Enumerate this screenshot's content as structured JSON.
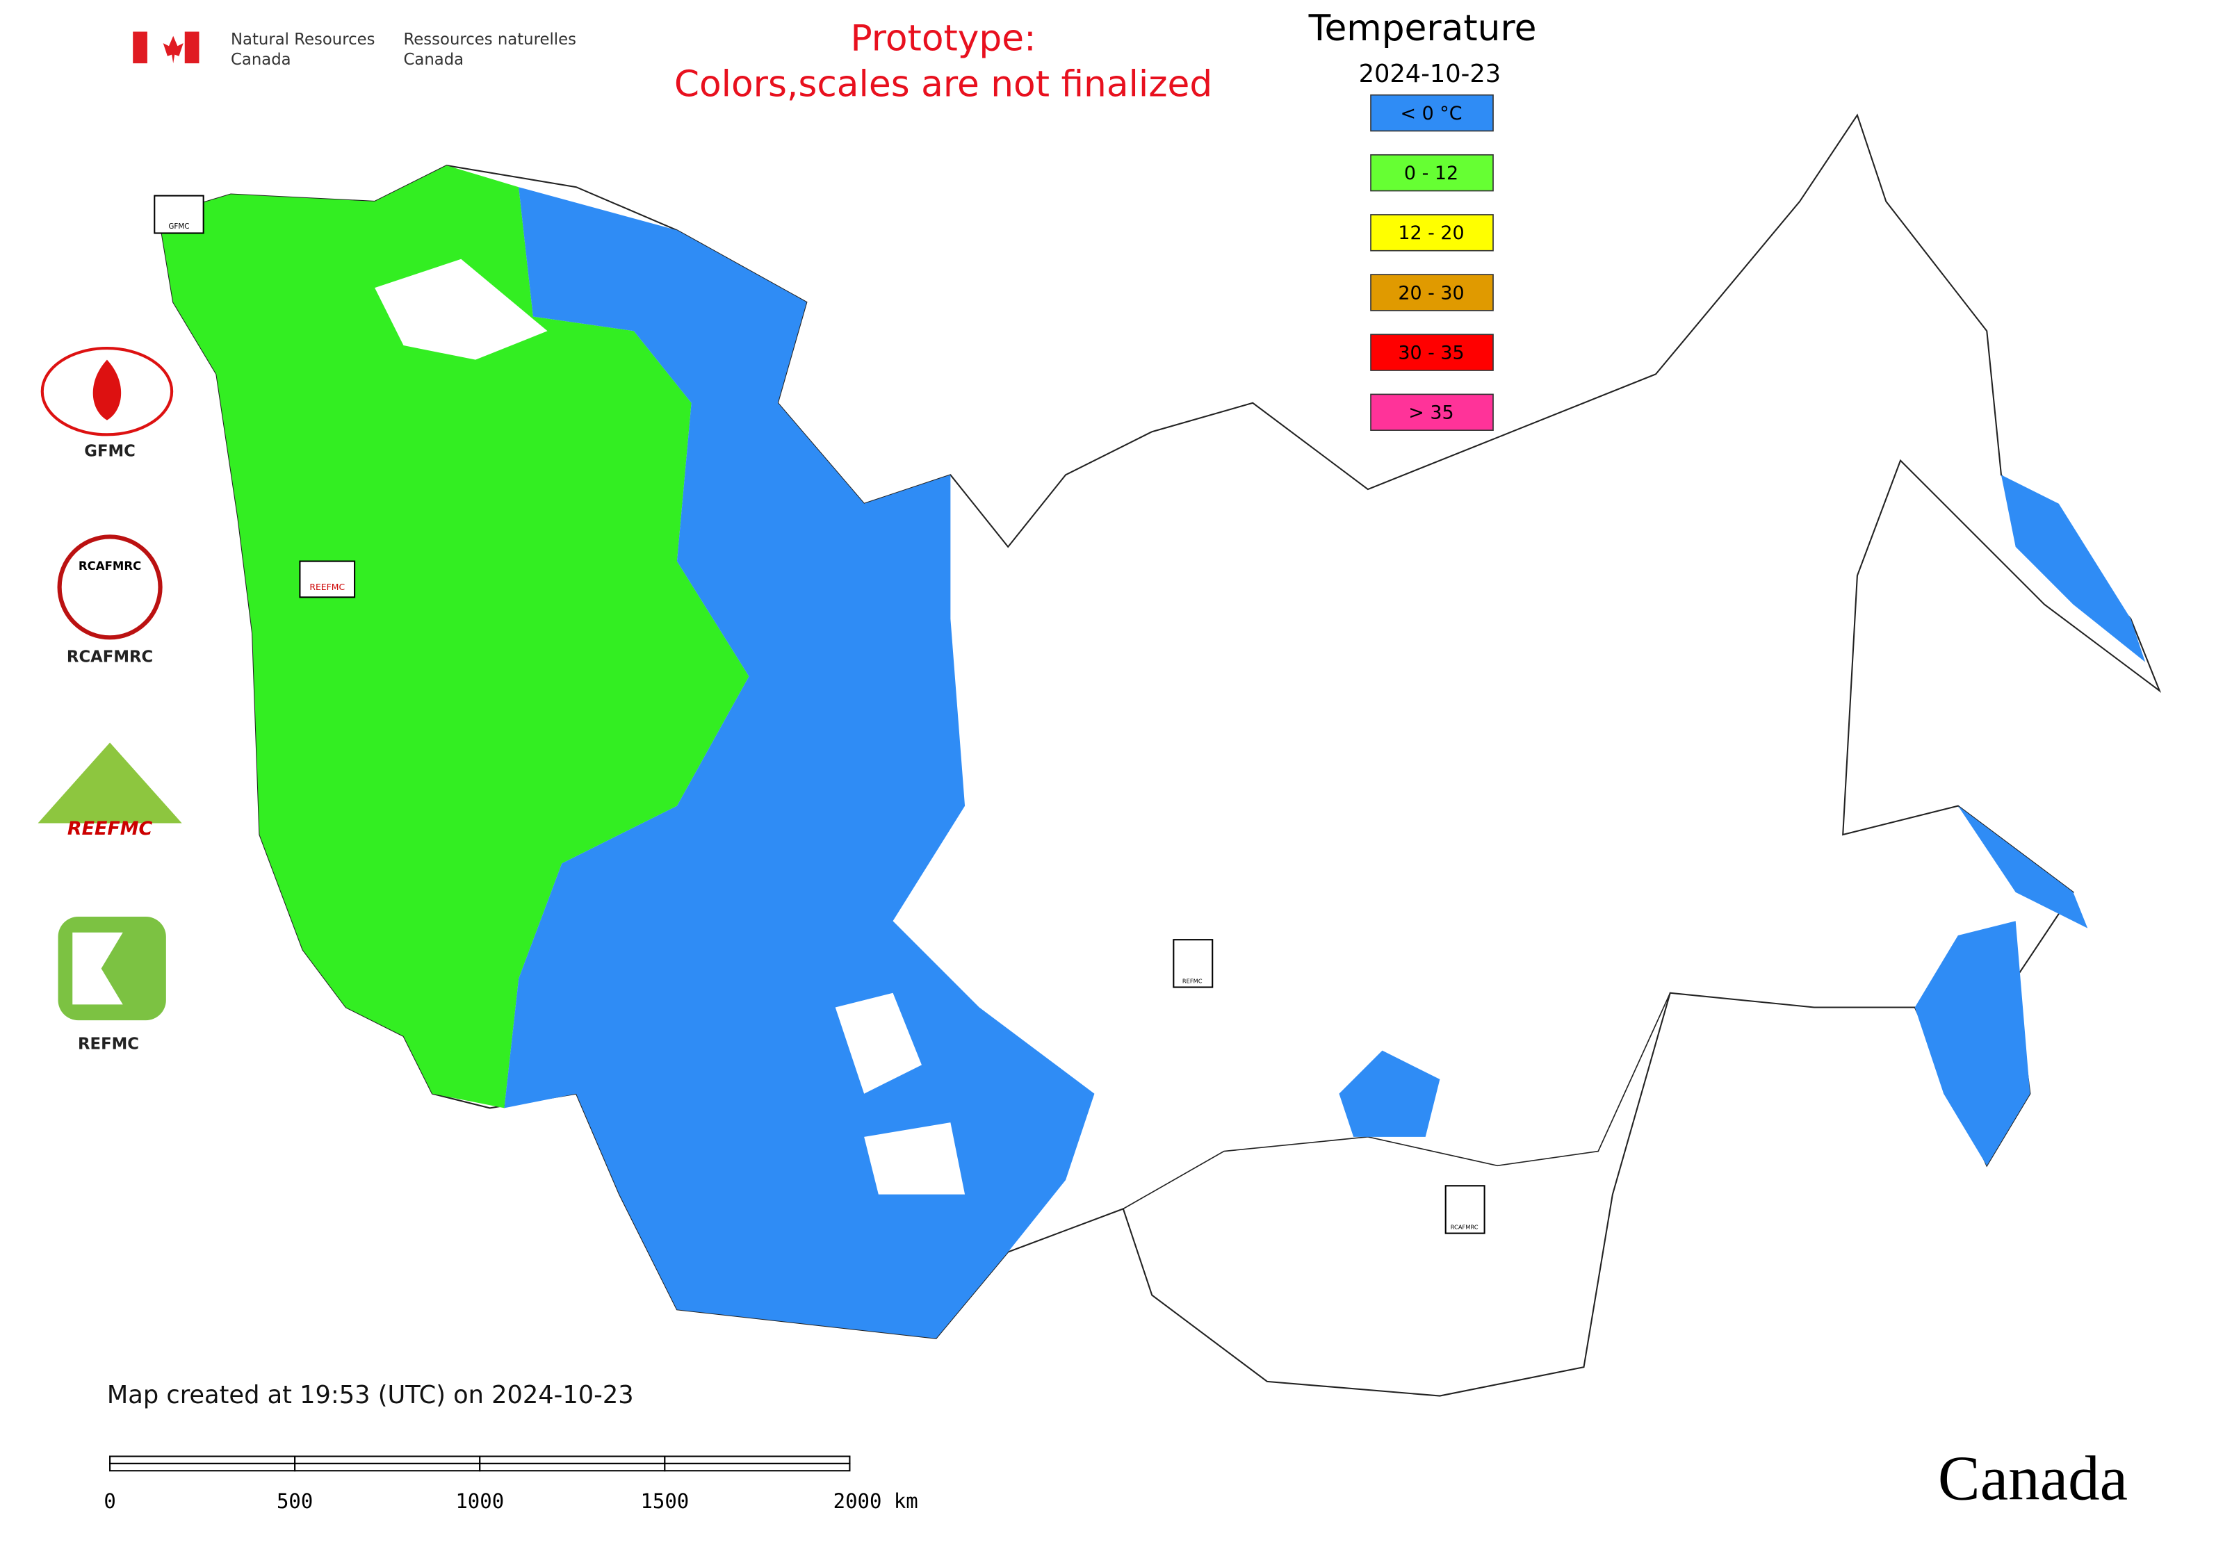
{
  "header": {
    "flag_text": [
      "Natural Resources",
      "Canada"
    ],
    "flag_text_fr": [
      "Ressources naturelles",
      "Canada"
    ]
  },
  "notice": [
    "Prototype:",
    "Colors,scales are not finalized"
  ],
  "legend": {
    "title": "Temperature",
    "date": "2024-10-23",
    "items": [
      {
        "label": "< 0 °C",
        "color": "#2f8cf5"
      },
      {
        "label": "0 - 12",
        "color": "#66ff33"
      },
      {
        "label": "12 - 20",
        "color": "#ffff00"
      },
      {
        "label": "20 - 30",
        "color": "#e09a00"
      },
      {
        "label": "30 - 35",
        "color": "#ff0000"
      },
      {
        "label": "> 35",
        "color": "#ff3399"
      }
    ]
  },
  "logos": {
    "gfmc": "GFMC",
    "rcafmrc_inner": "RCAFMRC",
    "rcafmrc": "RCAFMRC",
    "reefmc_inner": "REEFMC",
    "refmc": "REFMC"
  },
  "markers": [
    "GFMC",
    "REEFMC",
    "REFMC",
    "RCAFMRC"
  ],
  "footer": {
    "created": "Map created at 19:53 (UTC) on 2024-10-23"
  },
  "scale_bar": {
    "labels": [
      "0",
      "500",
      "1000",
      "1500",
      "2000 km"
    ]
  },
  "wordmark": "Canada"
}
